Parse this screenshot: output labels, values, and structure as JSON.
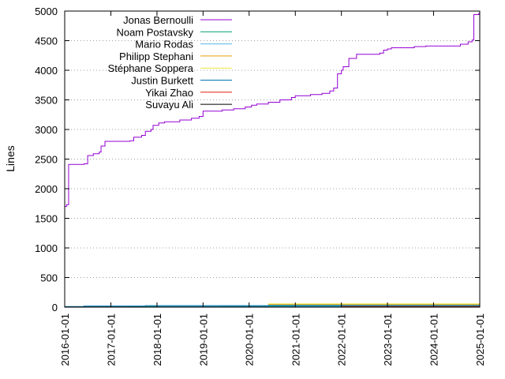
{
  "chart_data": {
    "type": "line",
    "step": true,
    "title": "",
    "xlabel": "",
    "ylabel": "Lines",
    "xlim": [
      "2016-01-01",
      "2025-01-01"
    ],
    "ylim": [
      0,
      5000
    ],
    "x_ticks": [
      "2016-01-01",
      "2017-01-01",
      "2018-01-01",
      "2019-01-01",
      "2020-01-01",
      "2021-01-01",
      "2022-01-01",
      "2023-01-01",
      "2024-01-01",
      "2025-01-01"
    ],
    "y_ticks": [
      0,
      500,
      1000,
      1500,
      2000,
      2500,
      3000,
      3500,
      4000,
      4500,
      5000
    ],
    "grid": "horizontal-dotted",
    "legend_position": "top-left",
    "series": [
      {
        "name": "Jonas Bernoulli",
        "color": "#9400d3",
        "points": [
          [
            "2016-01-01",
            1700
          ],
          [
            "2016-01-15",
            1730
          ],
          [
            "2016-02-01",
            2410
          ],
          [
            "2016-06-01",
            2420
          ],
          [
            "2016-07-01",
            2560
          ],
          [
            "2016-08-15",
            2590
          ],
          [
            "2016-10-01",
            2620
          ],
          [
            "2016-10-15",
            2720
          ],
          [
            "2016-11-15",
            2800
          ],
          [
            "2017-06-01",
            2810
          ],
          [
            "2017-07-01",
            2870
          ],
          [
            "2017-09-01",
            2900
          ],
          [
            "2017-10-01",
            2970
          ],
          [
            "2017-11-15",
            3000
          ],
          [
            "2017-12-01",
            3070
          ],
          [
            "2018-01-15",
            3110
          ],
          [
            "2018-03-01",
            3130
          ],
          [
            "2018-07-01",
            3160
          ],
          [
            "2018-10-01",
            3190
          ],
          [
            "2018-12-01",
            3220
          ],
          [
            "2019-01-01",
            3310
          ],
          [
            "2019-06-01",
            3330
          ],
          [
            "2019-09-01",
            3350
          ],
          [
            "2019-12-01",
            3380
          ],
          [
            "2020-01-20",
            3410
          ],
          [
            "2020-03-01",
            3430
          ],
          [
            "2020-06-01",
            3460
          ],
          [
            "2020-09-01",
            3500
          ],
          [
            "2020-12-01",
            3540
          ],
          [
            "2021-01-01",
            3570
          ],
          [
            "2021-05-01",
            3590
          ],
          [
            "2021-08-01",
            3610
          ],
          [
            "2021-10-01",
            3650
          ],
          [
            "2021-11-01",
            3700
          ],
          [
            "2021-12-01",
            3940
          ],
          [
            "2022-01-01",
            4000
          ],
          [
            "2022-01-15",
            4060
          ],
          [
            "2022-03-01",
            4200
          ],
          [
            "2022-05-01",
            4270
          ],
          [
            "2022-11-01",
            4290
          ],
          [
            "2022-12-01",
            4340
          ],
          [
            "2023-01-01",
            4360
          ],
          [
            "2023-02-01",
            4380
          ],
          [
            "2023-08-01",
            4400
          ],
          [
            "2023-11-01",
            4410
          ],
          [
            "2024-08-01",
            4440
          ],
          [
            "2024-10-01",
            4480
          ],
          [
            "2024-11-01",
            4510
          ],
          [
            "2024-11-15",
            4940
          ],
          [
            "2024-12-25",
            4970
          ]
        ]
      },
      {
        "name": "Noam Postavsky",
        "color": "#009e73",
        "points": [
          [
            "2016-01-01",
            5
          ],
          [
            "2017-06-01",
            12
          ],
          [
            "2019-06-01",
            15
          ],
          [
            "2020-06-01",
            20
          ],
          [
            "2025-01-01",
            20
          ]
        ]
      },
      {
        "name": "Mario Rodas",
        "color": "#56b4e9",
        "points": [
          [
            "2016-01-01",
            3
          ],
          [
            "2018-01-01",
            8
          ],
          [
            "2021-01-01",
            10
          ],
          [
            "2025-01-01",
            10
          ]
        ]
      },
      {
        "name": "Philipp Stephani",
        "color": "#e69f00",
        "points": [
          [
            "2020-06-01",
            45
          ],
          [
            "2025-01-01",
            45
          ]
        ]
      },
      {
        "name": "Stéphane Soppera",
        "color": "#f0e442",
        "points": [
          [
            "2020-06-01",
            55
          ],
          [
            "2025-01-01",
            55
          ]
        ]
      },
      {
        "name": "Justin Burkett",
        "color": "#0072b2",
        "points": [
          [
            "2016-01-01",
            10
          ],
          [
            "2016-06-01",
            18
          ],
          [
            "2017-10-01",
            25
          ],
          [
            "2020-06-01",
            30
          ],
          [
            "2025-01-01",
            30
          ]
        ]
      },
      {
        "name": "Yikai Zhao",
        "color": "#e51e10",
        "points": [
          [
            "2022-01-01",
            10
          ],
          [
            "2025-01-01",
            10
          ]
        ]
      },
      {
        "name": "Suvayu Ali",
        "color": "#000000",
        "points": [
          [
            "2016-01-01",
            2
          ],
          [
            "2025-01-01",
            2
          ]
        ]
      }
    ]
  }
}
